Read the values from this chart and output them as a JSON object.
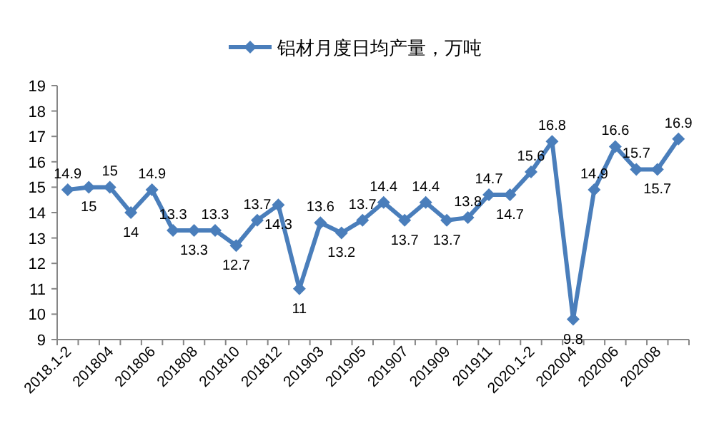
{
  "chart_data": {
    "type": "line",
    "categories": [
      "2018.1-2",
      null,
      "201804",
      null,
      "201806",
      null,
      "201808",
      null,
      "201810",
      null,
      "201812",
      null,
      "201903",
      null,
      "201905",
      null,
      "201907",
      null,
      "201909",
      null,
      "201911",
      null,
      "2020.1-2",
      null,
      "202004",
      null,
      "202006",
      null,
      "202008",
      null
    ],
    "series": [
      {
        "name": "铝材月度日均产量，万吨",
        "color": "#4a7ebb",
        "values": [
          14.9,
          15,
          15,
          14,
          14.9,
          13.3,
          13.3,
          13.3,
          12.7,
          13.7,
          14.3,
          11,
          13.6,
          13.2,
          13.7,
          14.4,
          13.7,
          14.4,
          13.7,
          13.8,
          14.7,
          14.7,
          15.6,
          16.8,
          9.8,
          14.9,
          16.6,
          15.7,
          15.7,
          16.9
        ]
      }
    ],
    "ylim": [
      9,
      19
    ],
    "yticks": [
      9,
      10,
      11,
      12,
      13,
      14,
      15,
      16,
      17,
      18,
      19
    ],
    "data_labels": true,
    "legend": "top",
    "marker": "diamond",
    "grid": false
  }
}
